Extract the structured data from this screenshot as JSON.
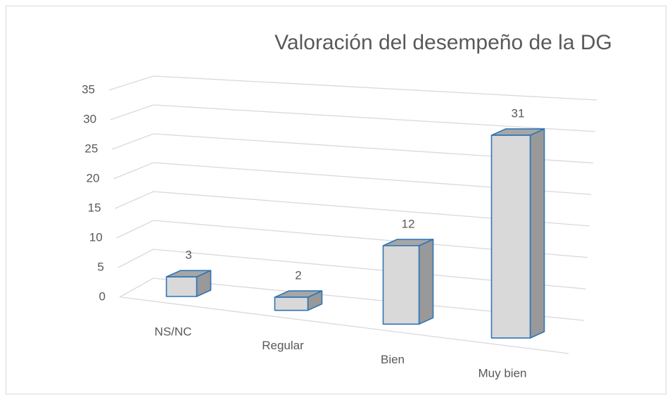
{
  "chart_data": {
    "type": "bar3d",
    "title": "Valoración del desempeño de la DG",
    "categories": [
      "NS/NC",
      "Regular",
      "Bien",
      "Muy bien"
    ],
    "values": [
      3,
      2,
      12,
      31
    ],
    "color": "#d9d9d9",
    "side_color": "#999999",
    "top_color": "#a6a6a6",
    "edge_color": "#2e75b6",
    "ylim": [
      0,
      35
    ],
    "yticks": [
      0,
      5,
      10,
      15,
      20,
      25,
      30,
      35
    ],
    "grid": true
  }
}
